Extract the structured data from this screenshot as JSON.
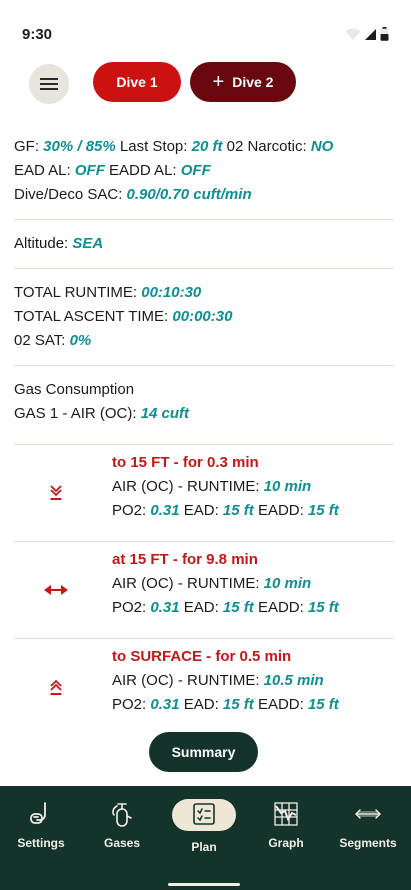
{
  "status": {
    "time": "9:30"
  },
  "top": {
    "dive1_label": "Dive 1",
    "dive2_plus": "+",
    "dive2_label": "Dive 2"
  },
  "info": {
    "gf_label": "GF:",
    "gf_value": "30% / 85%",
    "last_stop_label": "Last Stop:",
    "last_stop_value": "20 ft",
    "narcotic_label": "02 Narcotic:",
    "narcotic_value": "NO",
    "ead_al_label": "EAD AL:",
    "ead_al_value": "OFF",
    "eadd_al_label": "EADD AL:",
    "eadd_al_value": "OFF",
    "sac_label": "Dive/Deco SAC:",
    "sac_value": "0.90/0.70 cuft/min",
    "altitude_label": "Altitude:",
    "altitude_value": "SEA",
    "runtime_label": "TOTAL RUNTIME:",
    "runtime_value": "00:10:30",
    "ascent_label": "TOTAL ASCENT TIME:",
    "ascent_value": "00:00:30",
    "o2sat_label": "02 SAT:",
    "o2sat_value": "0%",
    "gas_consumption_heading": "Gas Consumption",
    "gas1_label": "GAS 1 - AIR (OC):",
    "gas1_value": "14 cuft"
  },
  "segments": [
    {
      "icon": "descend-icon",
      "title": "to 15 FT - for 0.3 min",
      "gas_label": "AIR (OC) - RUNTIME:",
      "runtime": "10 min",
      "po2_label": "PO2:",
      "po2": "0.31",
      "ead_label": "EAD:",
      "ead": "15 ft",
      "eadd_label": "EADD:",
      "eadd": "15 ft"
    },
    {
      "icon": "level-icon",
      "title": "at 15 FT - for 9.8 min",
      "gas_label": "AIR (OC) - RUNTIME:",
      "runtime": "10 min",
      "po2_label": "PO2:",
      "po2": "0.31",
      "ead_label": "EAD:",
      "ead": "15 ft",
      "eadd_label": "EADD:",
      "eadd": "15 ft"
    },
    {
      "icon": "ascend-icon",
      "title": "to SURFACE - for 0.5 min",
      "gas_label": "AIR (OC) - RUNTIME:",
      "runtime": "10.5 min",
      "po2_label": "PO2:",
      "po2": "0.31",
      "ead_label": "EAD:",
      "ead": "15 ft",
      "eadd_label": "EADD:",
      "eadd": "15 ft"
    }
  ],
  "summary_label": "Summary",
  "nav": {
    "items": [
      {
        "label": "Settings",
        "icon": "snorkel-icon"
      },
      {
        "label": "Gases",
        "icon": "tank-icon"
      },
      {
        "label": "Plan",
        "icon": "checklist-icon"
      },
      {
        "label": "Graph",
        "icon": "graph-icon"
      },
      {
        "label": "Segments",
        "icon": "segments-icon"
      }
    ],
    "active": "Plan"
  },
  "colors": {
    "accent_red": "#cc1111",
    "dark_red": "#6a0810",
    "teal_value": "#0d8f93",
    "segment_title": "#c41818",
    "nav_bg": "#14332a",
    "pill": "#efe7d6"
  }
}
